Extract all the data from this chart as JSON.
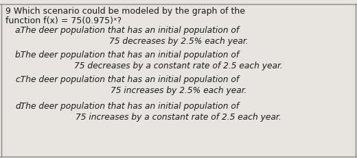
{
  "title_line1": "9 Which scenario could be modeled by the graph of the",
  "title_line2": "function f(x) = 75(0.975)ˣ?",
  "options": [
    {
      "label": "a.",
      "line1": "  The deer population that has an initial population of",
      "line2": "75 decreases by 2.5% each year."
    },
    {
      "label": "b.",
      "line1": "  The deer population that has an initial population of",
      "line2": "75 decreases by a constant rate of 2.5 each year."
    },
    {
      "label": "c.",
      "line1": "  The deer population that has an initial population of",
      "line2": "75 increases by 2.5% each year."
    },
    {
      "label": "d.",
      "line1": "  The deer population that has an initial population of",
      "line2": "75 increases by a constant rate of 2.5 each year."
    }
  ],
  "bg_color": "#e8e4df",
  "text_color": "#1a1a1a",
  "font_size_title": 9.0,
  "font_size_option": 8.8,
  "border_color": "#888888",
  "top_border_color": "#cccccc"
}
